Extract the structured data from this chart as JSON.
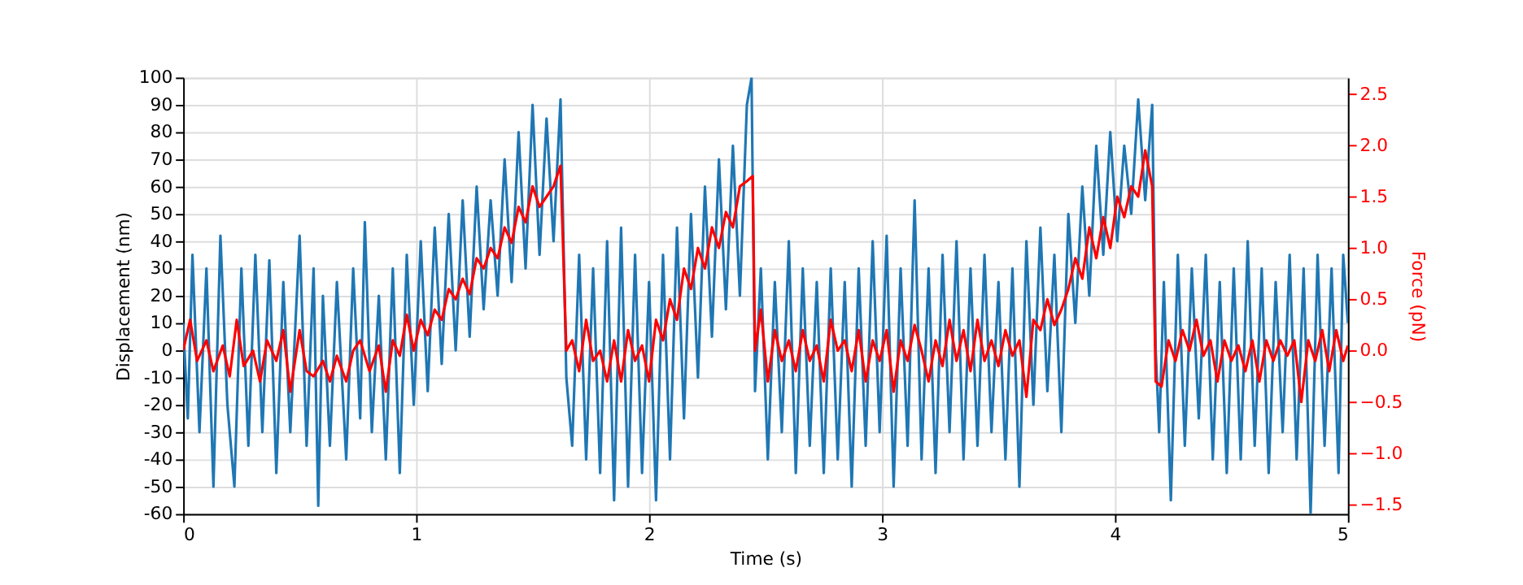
{
  "chart_data": {
    "type": "line",
    "xlabel": "Time (s)",
    "ylabel": "Displacement (nm)",
    "y2label": "Force (pN)",
    "xlim": [
      0,
      5
    ],
    "xticks": [
      0,
      1,
      2,
      3,
      4,
      5
    ],
    "ylim": [
      -60,
      100
    ],
    "yticks": [
      -60,
      -50,
      -40,
      -30,
      -20,
      -10,
      0,
      10,
      20,
      30,
      40,
      50,
      60,
      70,
      80,
      90,
      100
    ],
    "y2lim": [
      -1.59,
      2.66
    ],
    "y2ticks": [
      {
        "value": -1.5,
        "label": "−1.5"
      },
      {
        "value": -1.0,
        "label": "−1.0"
      },
      {
        "value": -0.5,
        "label": "−0.5"
      },
      {
        "value": 0,
        "label": "0.0"
      },
      {
        "value": 0.5,
        "label": "0.5"
      },
      {
        "value": 1.0,
        "label": "1.0"
      },
      {
        "value": 1.5,
        "label": "1.5"
      },
      {
        "value": 2.0,
        "label": "2.0"
      },
      {
        "value": 2.5,
        "label": "2.5"
      }
    ],
    "grid": true,
    "marker": "none",
    "line_style": "solid",
    "series": [
      {
        "color": "#1f77b4",
        "x": [
          0,
          0.02,
          0.04,
          0.07,
          0.1,
          0.13,
          0.16,
          0.19,
          0.22,
          0.25,
          0.28,
          0.31,
          0.34,
          0.37,
          0.4,
          0.43,
          0.46,
          0.5,
          0.53,
          0.56,
          0.58,
          0.6,
          0.63,
          0.66,
          0.7,
          0.73,
          0.76,
          0.78,
          0.81,
          0.84,
          0.87,
          0.9,
          0.93,
          0.96,
          0.99,
          1.02,
          1.05,
          1.08,
          1.11,
          1.14,
          1.17,
          1.2,
          1.23,
          1.26,
          1.29,
          1.32,
          1.35,
          1.38,
          1.41,
          1.44,
          1.47,
          1.5,
          1.53,
          1.56,
          1.59,
          1.62,
          1.645,
          1.67,
          1.7,
          1.73,
          1.76,
          1.79,
          1.82,
          1.85,
          1.88,
          1.91,
          1.94,
          1.97,
          2.0,
          2.03,
          2.06,
          2.09,
          2.12,
          2.15,
          2.18,
          2.21,
          2.24,
          2.27,
          2.3,
          2.33,
          2.36,
          2.39,
          2.42,
          2.44,
          2.455,
          2.48,
          2.51,
          2.54,
          2.57,
          2.6,
          2.63,
          2.66,
          2.69,
          2.72,
          2.75,
          2.78,
          2.81,
          2.84,
          2.87,
          2.9,
          2.93,
          2.96,
          2.99,
          3.02,
          3.05,
          3.08,
          3.11,
          3.14,
          3.17,
          3.2,
          3.23,
          3.26,
          3.29,
          3.32,
          3.35,
          3.38,
          3.41,
          3.44,
          3.47,
          3.5,
          3.53,
          3.56,
          3.59,
          3.62,
          3.65,
          3.68,
          3.71,
          3.74,
          3.77,
          3.8,
          3.83,
          3.86,
          3.89,
          3.92,
          3.95,
          3.98,
          4.01,
          4.04,
          4.07,
          4.1,
          4.13,
          4.16,
          4.175,
          4.19,
          4.21,
          4.24,
          4.27,
          4.3,
          4.33,
          4.36,
          4.39,
          4.42,
          4.45,
          4.48,
          4.51,
          4.54,
          4.57,
          4.6,
          4.63,
          4.66,
          4.69,
          4.72,
          4.75,
          4.78,
          4.81,
          4.84,
          4.87,
          4.9,
          4.93,
          4.96,
          4.98,
          5.0
        ],
        "values": [
          10,
          -25,
          35,
          -30,
          30,
          -50,
          42,
          -20,
          -50,
          30,
          -35,
          35,
          -30,
          33,
          -45,
          25,
          -30,
          42,
          -35,
          30,
          -57,
          20,
          -35,
          25,
          -40,
          30,
          -25,
          47,
          -30,
          20,
          -40,
          30,
          -45,
          35,
          -20,
          40,
          -15,
          45,
          -5,
          50,
          0,
          55,
          5,
          60,
          15,
          55,
          20,
          70,
          25,
          80,
          30,
          90,
          35,
          85,
          40,
          92,
          -10,
          -35,
          35,
          -40,
          30,
          -45,
          40,
          -55,
          45,
          -50,
          35,
          -45,
          25,
          -55,
          35,
          -40,
          45,
          -25,
          50,
          -10,
          60,
          5,
          70,
          15,
          75,
          20,
          90,
          100,
          -15,
          30,
          -40,
          25,
          -30,
          40,
          -45,
          30,
          -35,
          25,
          -45,
          30,
          -40,
          25,
          -50,
          30,
          -35,
          40,
          -30,
          42,
          -50,
          30,
          -35,
          55,
          -40,
          30,
          -45,
          35,
          -30,
          40,
          -40,
          30,
          -35,
          35,
          -30,
          25,
          -40,
          30,
          -50,
          40,
          -20,
          45,
          -15,
          35,
          -30,
          50,
          10,
          60,
          20,
          75,
          35,
          80,
          40,
          75,
          50,
          92,
          55,
          90,
          0,
          -30,
          25,
          -55,
          35,
          -35,
          30,
          -25,
          35,
          -40,
          25,
          -45,
          30,
          -40,
          40,
          -35,
          30,
          -45,
          25,
          -30,
          35,
          -40,
          30,
          -60,
          35,
          -35,
          30,
          -45,
          35,
          10
        ]
      },
      {
        "color": "#ff0000",
        "axis": "y2",
        "x": [
          0,
          0.03,
          0.06,
          0.1,
          0.13,
          0.17,
          0.2,
          0.23,
          0.26,
          0.3,
          0.33,
          0.36,
          0.4,
          0.43,
          0.46,
          0.5,
          0.53,
          0.56,
          0.6,
          0.63,
          0.66,
          0.7,
          0.73,
          0.76,
          0.8,
          0.84,
          0.87,
          0.9,
          0.93,
          0.96,
          0.99,
          1.02,
          1.05,
          1.08,
          1.11,
          1.14,
          1.17,
          1.2,
          1.23,
          1.26,
          1.29,
          1.32,
          1.35,
          1.38,
          1.41,
          1.44,
          1.47,
          1.5,
          1.53,
          1.56,
          1.59,
          1.62,
          1.645,
          1.67,
          1.7,
          1.73,
          1.76,
          1.79,
          1.82,
          1.85,
          1.88,
          1.91,
          1.94,
          1.97,
          2.0,
          2.03,
          2.06,
          2.09,
          2.12,
          2.15,
          2.18,
          2.21,
          2.24,
          2.27,
          2.3,
          2.33,
          2.36,
          2.39,
          2.42,
          2.445,
          2.455,
          2.48,
          2.51,
          2.54,
          2.57,
          2.6,
          2.63,
          2.66,
          2.69,
          2.72,
          2.75,
          2.78,
          2.81,
          2.84,
          2.87,
          2.9,
          2.93,
          2.96,
          2.99,
          3.02,
          3.05,
          3.08,
          3.11,
          3.14,
          3.17,
          3.2,
          3.23,
          3.26,
          3.29,
          3.32,
          3.35,
          3.38,
          3.41,
          3.44,
          3.47,
          3.5,
          3.53,
          3.56,
          3.59,
          3.62,
          3.65,
          3.68,
          3.71,
          3.74,
          3.77,
          3.8,
          3.83,
          3.86,
          3.89,
          3.92,
          3.95,
          3.98,
          4.01,
          4.04,
          4.07,
          4.1,
          4.13,
          4.16,
          4.175,
          4.2,
          4.23,
          4.26,
          4.29,
          4.32,
          4.35,
          4.38,
          4.41,
          4.44,
          4.47,
          4.5,
          4.53,
          4.56,
          4.59,
          4.62,
          4.65,
          4.68,
          4.71,
          4.74,
          4.77,
          4.8,
          4.83,
          4.86,
          4.89,
          4.92,
          4.95,
          4.98,
          5.0
        ],
        "values": [
          0,
          0.3,
          -0.1,
          0.1,
          -0.2,
          0.05,
          -0.25,
          0.3,
          -0.15,
          0,
          -0.3,
          0.1,
          -0.1,
          0.2,
          -0.4,
          0.2,
          -0.2,
          -0.25,
          -0.1,
          -0.3,
          -0.05,
          -0.3,
          0,
          0.1,
          -0.2,
          0.05,
          -0.4,
          0.1,
          -0.05,
          0.35,
          0,
          0.3,
          0.15,
          0.4,
          0.3,
          0.6,
          0.5,
          0.7,
          0.55,
          0.9,
          0.8,
          1.0,
          0.9,
          1.2,
          1.05,
          1.4,
          1.25,
          1.6,
          1.4,
          1.5,
          1.6,
          1.8,
          0,
          0.1,
          -0.2,
          0.3,
          -0.1,
          0,
          -0.3,
          0.1,
          -0.3,
          0.2,
          -0.1,
          0.05,
          -0.3,
          0.3,
          0.1,
          0.5,
          0.3,
          0.8,
          0.6,
          1.0,
          0.8,
          1.2,
          1.0,
          1.35,
          1.2,
          1.6,
          1.65,
          1.7,
          0,
          0.4,
          -0.3,
          0.2,
          -0.1,
          0.1,
          -0.2,
          0.2,
          -0.1,
          0.05,
          -0.3,
          0.3,
          0,
          0.1,
          -0.2,
          0.2,
          -0.3,
          0.1,
          -0.1,
          0.2,
          -0.4,
          0.1,
          -0.1,
          0.25,
          0,
          -0.3,
          0.1,
          -0.15,
          0.3,
          -0.1,
          0.2,
          -0.2,
          0.3,
          -0.1,
          0.1,
          -0.15,
          0.2,
          -0.05,
          0.1,
          -0.45,
          0.3,
          0.2,
          0.5,
          0.25,
          0.4,
          0.6,
          0.9,
          0.7,
          1.2,
          0.9,
          1.3,
          1.0,
          1.5,
          1.3,
          1.6,
          1.5,
          1.95,
          1.6,
          -0.3,
          -0.35,
          0.1,
          -0.1,
          0.2,
          0,
          0.3,
          -0.05,
          0.1,
          -0.3,
          0.1,
          -0.1,
          0.05,
          -0.2,
          0.1,
          -0.3,
          0.1,
          -0.1,
          0.1,
          -0.05,
          0.1,
          -0.5,
          0.1,
          -0.1,
          0.2,
          -0.2,
          0.2,
          -0.1,
          0.05
        ]
      }
    ]
  }
}
